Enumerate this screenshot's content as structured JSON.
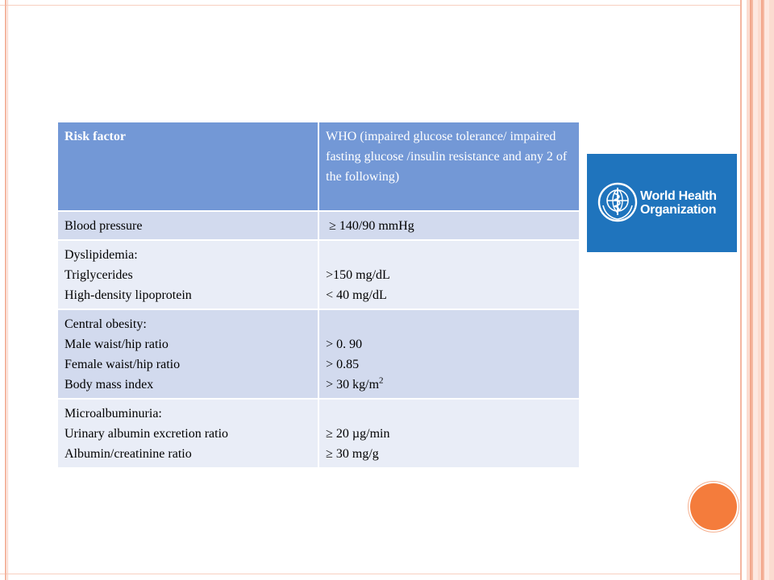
{
  "table": {
    "header": {
      "risk_factor": "Risk factor",
      "who_criteria": "WHO (impaired glucose tolerance/ impaired fasting glucose /insulin resistance and any 2 of the following)"
    },
    "blood_pressure": {
      "label": "Blood pressure",
      "value": "≥ 140/90 mmHg"
    },
    "dyslipidemia": {
      "title": "Dyslipidemia:",
      "triglycerides_label": "Triglycerides",
      "hdl_label": "High-density lipoprotein",
      "triglycerides_value": ">150 mg/dL",
      "hdl_value": "< 40 mg/dL"
    },
    "central_obesity": {
      "title": "Central obesity:",
      "male_label": "Male waist/hip ratio",
      "female_label": "Female waist/hip ratio",
      "bmi_label": "Body mass index",
      "male_value": "> 0. 90",
      "female_value": "> 0.85",
      "bmi_value": "> 30 kg/m",
      "bmi_superscript": "2"
    },
    "microalbuminuria": {
      "title": "Microalbuminuria:",
      "uaer_label": "Urinary albumin excretion ratio",
      "acr_label": "Albumin/creatinine ratio",
      "uaer_value": "≥ 20 µg/min",
      "acr_value": "≥ 30 mg/g"
    }
  },
  "logo": {
    "line1": "World Health",
    "line2": "Organization",
    "icon": "who-emblem-icon"
  },
  "colors": {
    "header_bg": "#7398d6",
    "row_dark": "#d2daee",
    "row_light": "#e9edf7",
    "logo_bg": "#1f74bd",
    "accent_circle": "#f47c3c"
  }
}
